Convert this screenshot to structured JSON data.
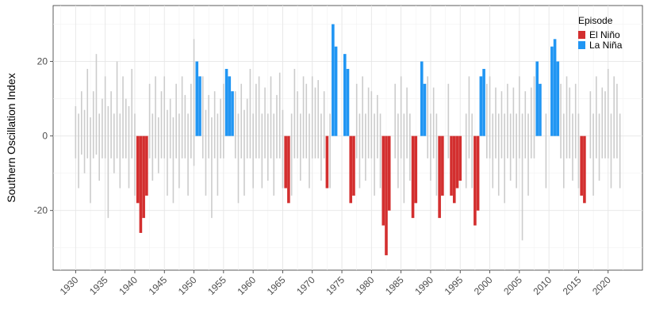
{
  "chart_data": {
    "type": "bar",
    "ylabel": "Southern Oscillation Index",
    "xlabel": "",
    "xlim": [
      1926.2,
      2025.8
    ],
    "ylim": [
      -36,
      35
    ],
    "grid": true,
    "x_ticks": [
      1930,
      1935,
      1940,
      1945,
      1950,
      1955,
      1960,
      1965,
      1970,
      1975,
      1980,
      1985,
      1990,
      1995,
      2000,
      2005,
      2010,
      2015,
      2020
    ],
    "y_ticks": [
      -20,
      0,
      20
    ],
    "legend": {
      "title": "Episode",
      "placement": "top-right",
      "entries": [
        {
          "label": "El Niño",
          "color": "#d32f2f"
        },
        {
          "label": "La Niña",
          "color": "#2196f3"
        }
      ]
    },
    "colors": {
      "neutral": "#cccccc",
      "el_nino": "#d32f2f",
      "la_nina": "#2196f3"
    },
    "series": [
      {
        "episode": "neutral",
        "x": [
          1930.0,
          1930.5,
          1931.0,
          1931.5,
          1932.0,
          1932.5,
          1933.0,
          1933.5,
          1934.0,
          1934.5,
          1935.0,
          1935.5,
          1936.0,
          1936.5,
          1937.0,
          1937.5,
          1938.0,
          1938.5,
          1939.0,
          1939.5,
          1940.0,
          1942.5,
          1943.0,
          1943.5,
          1944.0,
          1944.5,
          1945.0,
          1945.5,
          1946.0,
          1946.5,
          1947.0,
          1947.5,
          1948.0,
          1948.5,
          1949.0,
          1949.5,
          1950.0,
          1951.5,
          1952.0,
          1952.5,
          1953.0,
          1953.5,
          1954.0,
          1954.5,
          1955.0,
          1957.0,
          1957.5,
          1958.0,
          1958.5,
          1959.0,
          1959.5,
          1960.0,
          1960.5,
          1961.0,
          1961.5,
          1962.0,
          1962.5,
          1963.0,
          1963.5,
          1964.0,
          1964.5,
          1965.0,
          1966.5,
          1967.0,
          1967.5,
          1968.0,
          1968.5,
          1969.0,
          1969.5,
          1970.0,
          1970.5,
          1971.0,
          1971.5,
          1972.0,
          1973.0,
          1977.5,
          1978.0,
          1978.5,
          1979.0,
          1979.5,
          1980.0,
          1980.5,
          1981.0,
          1981.5,
          1984.0,
          1984.5,
          1985.0,
          1985.5,
          1986.0,
          1986.5,
          1989.5,
          1990.0,
          1990.5,
          1991.0,
          1993.0,
          1996.0,
          1996.5,
          1997.0,
          1999.5,
          2000.0,
          2000.5,
          2001.0,
          2001.5,
          2002.0,
          2002.5,
          2003.0,
          2003.5,
          2004.0,
          2004.5,
          2005.0,
          2005.5,
          2006.0,
          2006.5,
          2007.0,
          2007.5,
          2009.5,
          2012.0,
          2012.5,
          2013.0,
          2013.5,
          2014.0,
          2014.5,
          2015.0,
          2017.0,
          2017.5,
          2018.0,
          2018.5,
          2019.0,
          2019.5,
          2020.0,
          2020.5,
          2021.0,
          2021.5,
          2022.0
        ],
        "y": [
          6,
          -8,
          10,
          -6,
          14,
          -12,
          8,
          18,
          -7,
          6,
          12,
          -9,
          8,
          -6,
          16,
          -8,
          12,
          6,
          -8,
          14,
          -10,
          10,
          -7,
          12,
          -6,
          8,
          12,
          -9,
          6,
          -12,
          10,
          -8,
          12,
          7,
          -10,
          9,
          8,
          12,
          -9,
          7,
          -14,
          8,
          -10,
          6,
          10,
          8,
          -12,
          10,
          -9,
          6,
          14,
          -8,
          10,
          12,
          -8,
          9,
          -7,
          12,
          -10,
          7,
          13,
          -9,
          -10,
          14,
          8,
          -7,
          12,
          10,
          -8,
          12,
          9,
          11,
          -7,
          8,
          -9,
          10,
          -8,
          12,
          -7,
          9,
          8,
          -10,
          7,
          -9,
          10,
          -8,
          12,
          -12,
          9,
          -7,
          12,
          -7,
          9,
          -10,
          10,
          -8,
          12,
          -9,
          10,
          12,
          -8,
          9,
          -10,
          8,
          -12,
          10,
          -7,
          9,
          -8,
          12,
          -28,
          8,
          -10,
          9,
          12,
          -9,
          10,
          -8,
          12,
          9,
          -7,
          10,
          -9,
          8,
          -10,
          12,
          -7,
          9,
          8,
          14,
          -9,
          12,
          10,
          -8
        ],
        "peak_up": [
          8,
          6,
          12,
          7,
          18,
          5,
          12,
          22,
          6,
          10,
          16,
          8,
          12,
          6,
          20,
          6,
          16,
          10,
          8,
          18,
          6,
          14,
          6,
          16,
          5,
          12,
          16,
          7,
          10,
          5,
          14,
          6,
          16,
          11,
          6,
          14,
          26,
          16,
          7,
          11,
          5,
          12,
          6,
          10,
          14,
          12,
          6,
          14,
          7,
          10,
          18,
          6,
          14,
          16,
          6,
          13,
          6,
          16,
          6,
          11,
          17,
          7,
          6,
          18,
          12,
          6,
          16,
          14,
          6,
          16,
          13,
          15,
          6,
          12,
          6,
          14,
          6,
          16,
          6,
          13,
          12,
          6,
          11,
          6,
          14,
          6,
          16,
          6,
          13,
          6,
          16,
          6,
          13,
          6,
          14,
          6,
          16,
          6,
          14,
          16,
          6,
          13,
          6,
          12,
          6,
          14,
          6,
          13,
          6,
          16,
          6,
          12,
          6,
          13,
          16,
          6,
          14,
          6,
          16,
          13,
          6,
          14,
          6,
          12,
          6,
          16,
          6,
          13,
          12,
          18,
          6,
          16,
          14,
          6
        ],
        "peak_down": [
          -6,
          -14,
          -5,
          -10,
          -6,
          -18,
          -6,
          -5,
          -12,
          -6,
          -6,
          -22,
          -6,
          -10,
          -6,
          -14,
          -6,
          -6,
          -14,
          -6,
          -16,
          -6,
          -12,
          -6,
          -10,
          -6,
          -6,
          -16,
          -6,
          -18,
          -6,
          -14,
          -6,
          -6,
          -16,
          -6,
          -8,
          -6,
          -16,
          -6,
          -22,
          -6,
          -16,
          -6,
          -6,
          -6,
          -18,
          -6,
          -16,
          -6,
          -6,
          -14,
          -6,
          -6,
          -14,
          -6,
          -12,
          -6,
          -16,
          -6,
          -6,
          -14,
          -16,
          -6,
          -6,
          -12,
          -6,
          -6,
          -14,
          -6,
          -6,
          -6,
          -12,
          -6,
          -14,
          -6,
          -14,
          -6,
          -12,
          -6,
          -6,
          -16,
          -6,
          -14,
          -6,
          -14,
          -6,
          -18,
          -6,
          -12,
          -6,
          -12,
          -6,
          -16,
          -6,
          -14,
          -6,
          -14,
          -6,
          -6,
          -14,
          -6,
          -16,
          -6,
          -18,
          -6,
          -12,
          -6,
          -14,
          -6,
          -28,
          -6,
          -16,
          -6,
          -6,
          -14,
          -6,
          -14,
          -6,
          -6,
          -12,
          -6,
          -14,
          -6,
          -16,
          -6,
          -12,
          -6,
          -6,
          -6,
          -14,
          -6,
          -6,
          -14
        ]
      },
      {
        "episode": "el_nino",
        "x": [
          1940.5,
          1941.0,
          1941.5,
          1942.0,
          1965.5,
          1966.0,
          1972.5,
          1976.5,
          1977.0,
          1982.0,
          1982.5,
          1983.0,
          1987.0,
          1987.5,
          1991.5,
          1992.0,
          1993.5,
          1994.0,
          1994.5,
          1995.0,
          1997.5,
          1998.0,
          2015.5,
          2016.0
        ],
        "y": [
          -18,
          -26,
          -22,
          -16,
          -14,
          -18,
          -14,
          -18,
          -16,
          -24,
          -32,
          -20,
          -22,
          -18,
          -22,
          -16,
          -16,
          -18,
          -14,
          -12,
          -24,
          -20,
          -16,
          -18
        ]
      },
      {
        "episode": "la_nina",
        "x": [
          1950.5,
          1951.0,
          1955.5,
          1956.0,
          1956.5,
          1973.5,
          1974.0,
          1975.5,
          1976.0,
          1988.5,
          1989.0,
          1998.5,
          1999.0,
          2008.0,
          2008.5,
          2010.5,
          2011.0,
          2011.5
        ],
        "y": [
          20,
          16,
          18,
          16,
          12,
          30,
          24,
          22,
          18,
          20,
          14,
          16,
          18,
          20,
          14,
          24,
          26,
          20
        ]
      }
    ]
  }
}
